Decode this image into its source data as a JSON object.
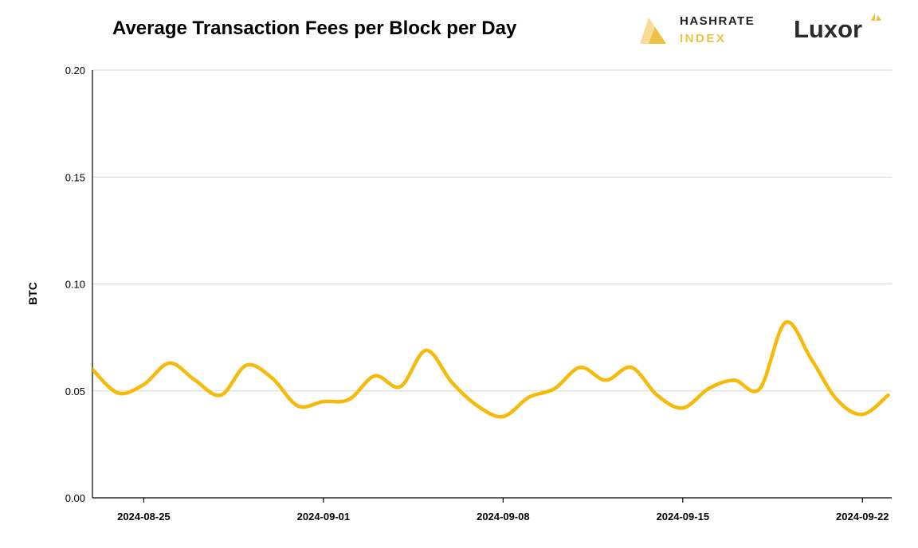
{
  "header": {
    "title": "Average Transaction Fees per Block per Day",
    "logo_hashrate_line1": "HASHRATE",
    "logo_hashrate_line2": "INDEX",
    "logo_luxor": "Luxor"
  },
  "colors": {
    "line": "#f7b90a",
    "grid": "#d9d9d9",
    "axis": "#000000",
    "hashrate_brand": "#f0c040"
  },
  "chart_data": {
    "type": "line",
    "title": "Average Transaction Fees per Block per Day",
    "xlabel": "",
    "ylabel": "BTC",
    "ylim": [
      0,
      0.2
    ],
    "yticks": [
      "0.00",
      "0.05",
      "0.10",
      "0.15",
      "0.20"
    ],
    "xticks": [
      "2024-08-25",
      "2024-09-01",
      "2024-09-08",
      "2024-09-15",
      "2024-09-22"
    ],
    "xrange": [
      "2024-08-23",
      "2024-09-23"
    ],
    "grid": true,
    "legend": "none",
    "series": [
      {
        "values": [
          {
            "x": "2024-08-23",
            "y": 0.06
          },
          {
            "x": "2024-08-24",
            "y": 0.049
          },
          {
            "x": "2024-08-25",
            "y": 0.053
          },
          {
            "x": "2024-08-26",
            "y": 0.063
          },
          {
            "x": "2024-08-27",
            "y": 0.055
          },
          {
            "x": "2024-08-28",
            "y": 0.048
          },
          {
            "x": "2024-08-29",
            "y": 0.062
          },
          {
            "x": "2024-08-30",
            "y": 0.056
          },
          {
            "x": "2024-08-31",
            "y": 0.043
          },
          {
            "x": "2024-09-01",
            "y": 0.045
          },
          {
            "x": "2024-09-02",
            "y": 0.046
          },
          {
            "x": "2024-09-03",
            "y": 0.057
          },
          {
            "x": "2024-09-04",
            "y": 0.052
          },
          {
            "x": "2024-09-05",
            "y": 0.069
          },
          {
            "x": "2024-09-06",
            "y": 0.054
          },
          {
            "x": "2024-09-07",
            "y": 0.043
          },
          {
            "x": "2024-09-08",
            "y": 0.038
          },
          {
            "x": "2024-09-09",
            "y": 0.047
          },
          {
            "x": "2024-09-10",
            "y": 0.051
          },
          {
            "x": "2024-09-11",
            "y": 0.061
          },
          {
            "x": "2024-09-12",
            "y": 0.055
          },
          {
            "x": "2024-09-13",
            "y": 0.061
          },
          {
            "x": "2024-09-14",
            "y": 0.048
          },
          {
            "x": "2024-09-15",
            "y": 0.042
          },
          {
            "x": "2024-09-16",
            "y": 0.051
          },
          {
            "x": "2024-09-17",
            "y": 0.055
          },
          {
            "x": "2024-09-18",
            "y": 0.051
          },
          {
            "x": "2024-09-19",
            "y": 0.082
          },
          {
            "x": "2024-09-20",
            "y": 0.065
          },
          {
            "x": "2024-09-21",
            "y": 0.046
          },
          {
            "x": "2024-09-22",
            "y": 0.039
          },
          {
            "x": "2024-09-23",
            "y": 0.048
          }
        ]
      }
    ]
  }
}
